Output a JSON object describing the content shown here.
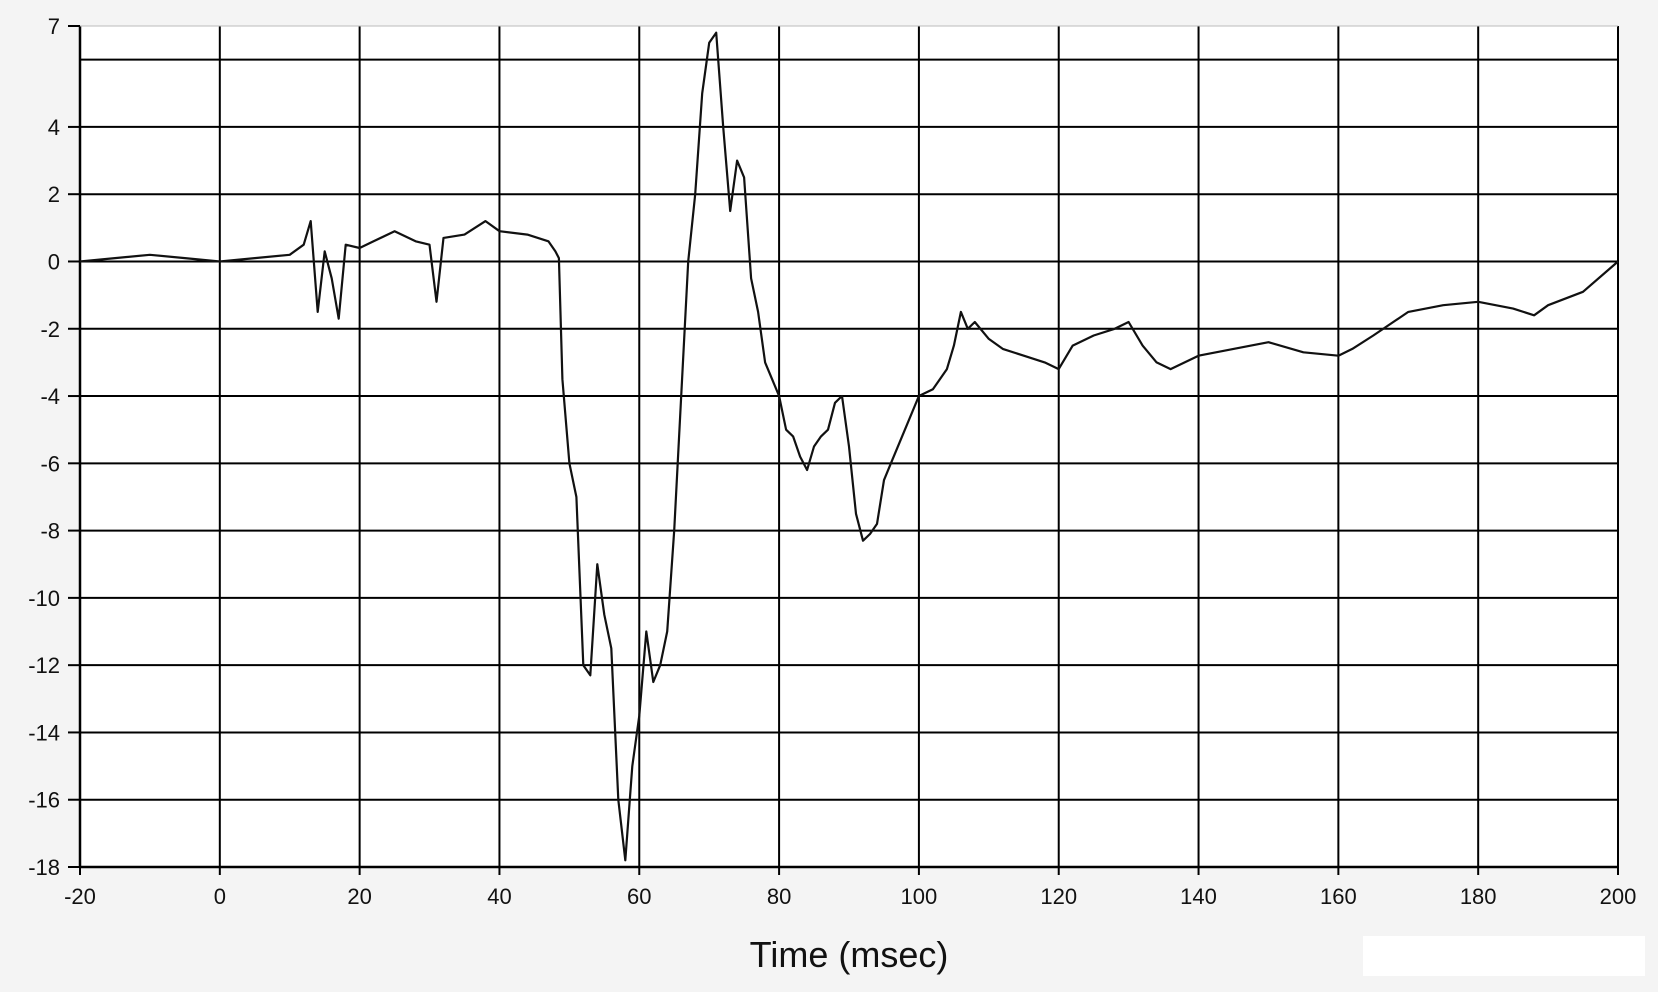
{
  "chart_data": {
    "type": "line",
    "title": "",
    "xlabel": "Time (msec)",
    "ylabel": "",
    "xlim": [
      -20,
      200
    ],
    "ylim": [
      -18,
      7
    ],
    "x_ticks": [
      -20,
      0,
      20,
      40,
      60,
      80,
      100,
      120,
      140,
      160,
      180,
      200
    ],
    "x_tick_labels": [
      "-20",
      "0",
      "20",
      "40",
      "60",
      "80",
      "100",
      "120",
      "140",
      "160",
      "180",
      "200"
    ],
    "y_ticks": [
      7,
      4,
      2,
      0,
      -2,
      -4,
      -6,
      -8,
      -10,
      -12,
      -14,
      -16,
      -18
    ],
    "y_tick_labels": [
      "7",
      "4",
      "2",
      "0",
      "-2",
      "-4",
      "-6",
      "-8",
      "-10",
      "-12",
      "-14",
      "-16",
      "-18"
    ],
    "y_gridlines": [
      6,
      4,
      2,
      0,
      -2,
      -4,
      -6,
      -8,
      -10,
      -12,
      -14,
      -16
    ],
    "grid": true,
    "line_color": "#111111",
    "grid_color": "#000000",
    "background_color": "#ffffff",
    "series": [
      {
        "x": [
          -20,
          -15,
          -10,
          -5,
          0,
          5,
          10,
          12,
          13,
          14,
          15,
          16,
          17,
          18,
          20,
          22,
          25,
          28,
          30,
          31,
          32,
          35,
          38,
          40,
          44,
          47,
          48,
          48.5,
          49,
          50,
          51,
          52,
          53,
          54,
          55,
          56,
          57,
          58,
          59,
          60,
          61,
          62,
          63,
          64,
          65,
          66,
          67,
          68,
          69,
          70,
          71,
          72,
          73,
          74,
          75,
          76,
          77,
          78,
          79,
          80,
          81,
          82,
          83,
          84,
          85,
          86,
          87,
          88,
          89,
          90,
          91,
          92,
          93,
          94,
          95,
          96,
          98,
          100,
          102,
          104,
          105,
          106,
          107,
          108,
          110,
          112,
          115,
          118,
          120,
          122,
          125,
          128,
          130,
          132,
          134,
          136,
          140,
          145,
          150,
          155,
          160,
          162,
          165,
          170,
          175,
          180,
          185,
          188,
          190,
          195,
          200
        ],
        "y": [
          0,
          0.1,
          0.2,
          0.1,
          0,
          0.1,
          0.2,
          0.5,
          1.2,
          -1.5,
          0.3,
          -0.5,
          -1.7,
          0.5,
          0.4,
          0.6,
          0.9,
          0.6,
          0.5,
          -1.2,
          0.7,
          0.8,
          1.2,
          0.9,
          0.8,
          0.6,
          0.3,
          0.1,
          -3.5,
          -6,
          -7,
          -12,
          -12.3,
          -9,
          -10.5,
          -11.5,
          -16,
          -17.8,
          -15,
          -13.5,
          -11,
          -12.5,
          -12,
          -11,
          -8,
          -4,
          0,
          2,
          5,
          6.5,
          6.8,
          4,
          1.5,
          3,
          2.5,
          -0.5,
          -1.5,
          -3,
          -3.5,
          -4,
          -5,
          -5.2,
          -5.8,
          -6.2,
          -5.5,
          -5.2,
          -5,
          -4.2,
          -4,
          -5.5,
          -7.5,
          -8.3,
          -8.1,
          -7.8,
          -6.5,
          -6,
          -5,
          -4,
          -3.8,
          -3.2,
          -2.5,
          -1.5,
          -2,
          -1.8,
          -2.3,
          -2.6,
          -2.8,
          -3,
          -3.2,
          -2.5,
          -2.2,
          -2,
          -1.8,
          -2.5,
          -3,
          -3.2,
          -2.8,
          -2.6,
          -2.4,
          -2.7,
          -2.8,
          -2.6,
          -2.2,
          -1.5,
          -1.3,
          -1.2,
          -1.4,
          -1.6,
          -1.3,
          -0.9,
          0
        ]
      }
    ]
  }
}
